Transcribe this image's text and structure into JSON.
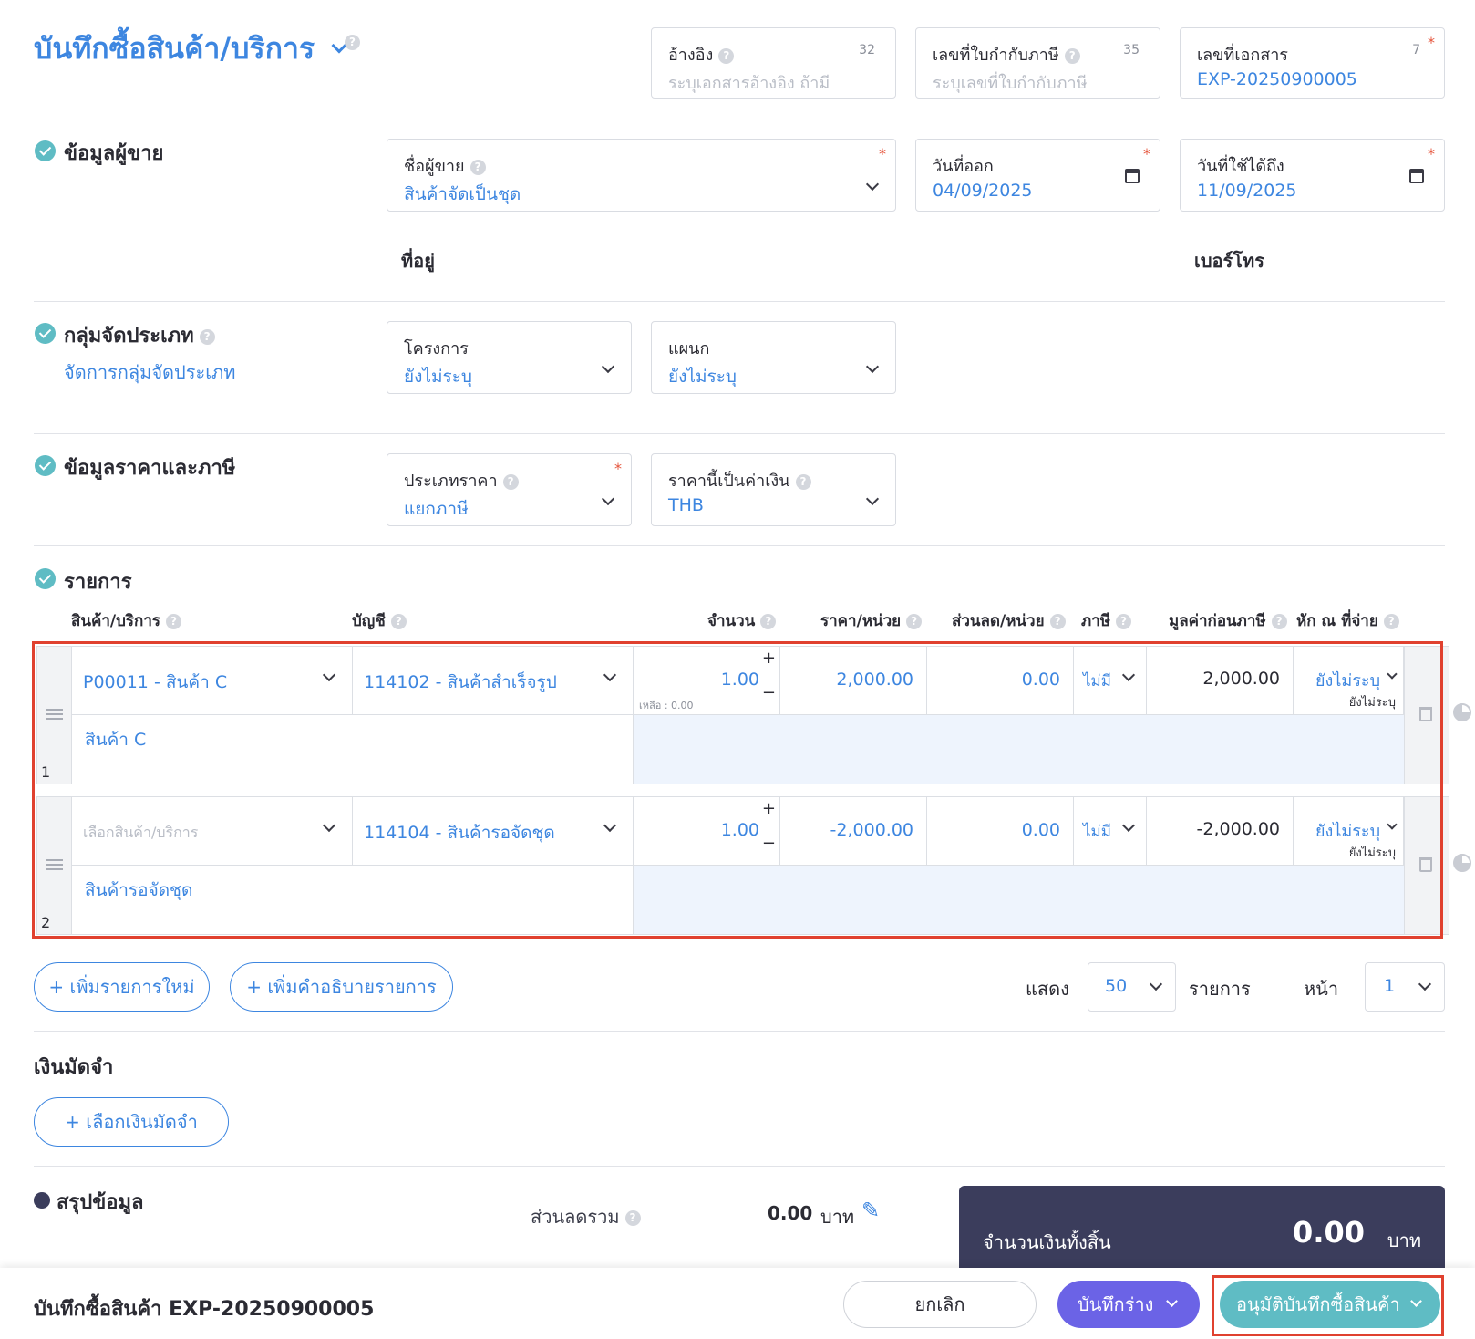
{
  "header": {
    "title": "บันทึกซื้อสินค้า/บริการ",
    "reference": {
      "label": "อ้างอิง",
      "count": "32",
      "placeholder": "ระบุเอกสารอ้างอิง ถ้ามี"
    },
    "tax_invoice": {
      "label": "เลขที่ใบกำกับภาษี",
      "count": "35",
      "placeholder": "ระบุเลขที่ใบกำกับภาษี"
    },
    "doc_number": {
      "label": "เลขที่เอกสาร",
      "count": "7",
      "value": "EXP-20250900005"
    }
  },
  "vendor": {
    "section_title": "ข้อมูลผู้ขาย",
    "name_label": "ชื่อผู้ขาย",
    "name_value": "สินค้าจัดเป็นชุด",
    "issue_date_label": "วันที่ออก",
    "issue_date": "04/09/2025",
    "valid_until_label": "วันที่ใช้ได้ถึง",
    "valid_until": "11/09/2025",
    "address_label": "ที่อยู่",
    "phone_label": "เบอร์โทร"
  },
  "category": {
    "section_title": "กลุ่มจัดประเภท",
    "manage_link": "จัดการกลุ่มจัดประเภท",
    "project_label": "โครงการ",
    "project_value": "ยังไม่ระบุ",
    "department_label": "แผนก",
    "department_value": "ยังไม่ระบุ"
  },
  "pricing": {
    "section_title": "ข้อมูลราคาและภาษี",
    "price_type_label": "ประเภทราคา",
    "price_type_value": "แยกภาษี",
    "currency_label": "ราคานี้เป็นค่าเงิน",
    "currency_value": "THB"
  },
  "items": {
    "section_title": "รายการ",
    "columns": {
      "product": "สินค้า/บริการ",
      "account": "บัญชี",
      "qty": "จำนวน",
      "price": "ราคา/หน่วย",
      "discount": "ส่วนลด/หน่วย",
      "tax": "ภาษี",
      "pretax": "มูลค่าก่อนภาษี",
      "wht": "หัก ณ ที่จ่าย"
    },
    "rows": [
      {
        "index": "1",
        "product": "P00011 - สินค้า C",
        "account": "114102 - สินค้าสำเร็จรูป",
        "qty": "1.00",
        "remaining": "เหลือ : 0.00",
        "price": "2,000.00",
        "discount": "0.00",
        "tax": "ไม่มี",
        "pretax": "2,000.00",
        "wht": "ยังไม่ระบุ",
        "wht_sub": "ยังไม่ระบุ",
        "description": "สินค้า C"
      },
      {
        "index": "2",
        "product_placeholder": "เลือกสินค้า/บริการ",
        "account": "114104 - สินค้ารอจัดชุด",
        "qty": "1.00",
        "price": "-2,000.00",
        "discount": "0.00",
        "tax": "ไม่มี",
        "pretax": "-2,000.00",
        "wht": "ยังไม่ระบุ",
        "wht_sub": "ยังไม่ระบุ",
        "description": "สินค้ารอจัดชุด"
      }
    ],
    "add_item": "+ เพิ่มรายการใหม่",
    "add_description": "+ เพิ่มคำอธิบายรายการ",
    "show_label": "แสดง",
    "page_size": "50",
    "items_label": "รายการ",
    "page_label": "หน้า",
    "page": "1"
  },
  "deposit": {
    "section_title": "เงินมัดจำ",
    "select_button": "+ เลือกเงินมัดจำ"
  },
  "summary": {
    "section_title": "สรุปข้อมูล",
    "discount_total_label": "ส่วนลดรวม",
    "discount_total": "0.00",
    "currency_unit": "บาท",
    "grand_total_label": "จำนวนเงินทั้งสิ้น",
    "grand_total": "0.00"
  },
  "footer": {
    "title": "บันทึกซื้อสินค้า EXP-20250900005",
    "cancel": "ยกเลิก",
    "save_draft": "บันทึกร่าง",
    "approve": "อนุมัติบันทึกซื้อสินค้า"
  },
  "colors": {
    "primary_blue": "#3d86e0",
    "purple": "#6b63e6",
    "teal": "#5fbcc4",
    "navy": "#3b3d5c",
    "highlight_red": "#e0412f"
  }
}
